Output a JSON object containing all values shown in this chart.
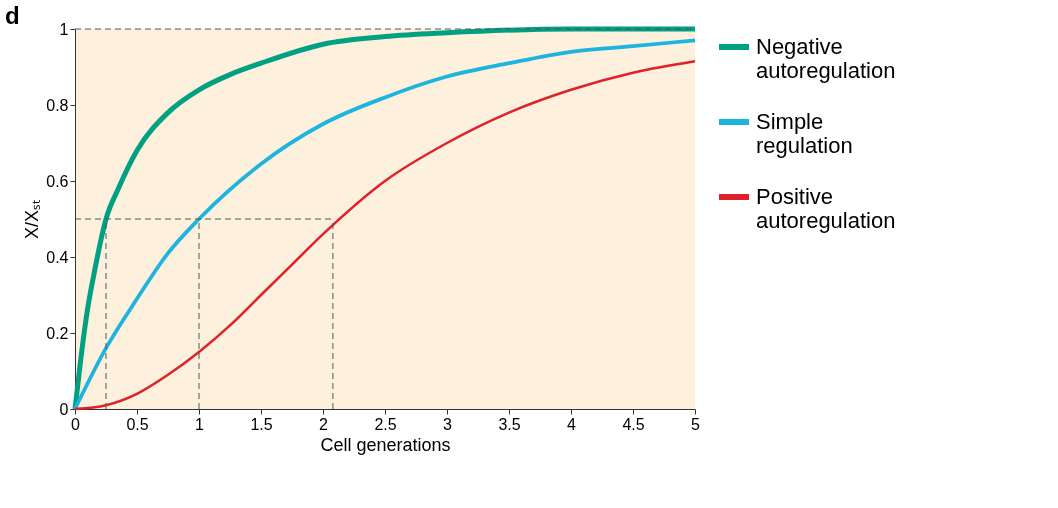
{
  "chart_data": {
    "type": "line",
    "xlabel": "Cell generations",
    "ylabel": "X/Xₛₜ",
    "annotations": [
      "d"
    ],
    "xlim": [
      0,
      5
    ],
    "xticks": [
      0,
      0.5,
      1,
      1.5,
      2,
      2.5,
      3,
      3.5,
      4,
      4.5,
      5
    ],
    "ylim": [
      0,
      1
    ],
    "yticks": [
      0,
      0.2,
      0.4,
      0.6,
      0.8,
      1
    ],
    "legend": "right",
    "grid": false,
    "ref_lines": [
      {
        "axis": "y",
        "value": 1,
        "line_style": "dashed"
      },
      {
        "axis": "y",
        "value": 0.5,
        "line_style": "dashed"
      },
      {
        "axis": "x",
        "value": 0.25,
        "line_style": "dashed"
      },
      {
        "axis": "x",
        "value": 1,
        "line_style": "dashed"
      },
      {
        "axis": "x",
        "value": 2.08,
        "line_style": "dashed"
      }
    ],
    "series": [
      {
        "name": "Negative autoregulation",
        "color": "#00a082",
        "x": [
          0,
          0.05,
          0.1,
          0.15,
          0.25,
          0.35,
          0.5,
          0.75,
          1,
          1.25,
          1.5,
          2,
          2.5,
          3,
          4,
          5
        ],
        "values": [
          0,
          0.14,
          0.26,
          0.35,
          0.5,
          0.58,
          0.68,
          0.78,
          0.84,
          0.88,
          0.91,
          0.96,
          0.98,
          0.99,
          1,
          1
        ]
      },
      {
        "name": "Simple regulation",
        "color": "#1eb4e0",
        "x": [
          0,
          0.25,
          0.5,
          0.75,
          1,
          1.5,
          2,
          2.5,
          3,
          3.5,
          4,
          4.5,
          5
        ],
        "values": [
          0,
          0.16,
          0.29,
          0.41,
          0.5,
          0.645,
          0.75,
          0.82,
          0.875,
          0.91,
          0.94,
          0.955,
          0.97
        ]
      },
      {
        "name": "Positive autoregulation",
        "color": "#e0202a",
        "x": [
          0,
          0.25,
          0.5,
          0.75,
          1,
          1.25,
          1.5,
          1.75,
          2,
          2.5,
          3,
          3.5,
          4,
          4.5,
          5
        ],
        "values": [
          0,
          0.01,
          0.04,
          0.09,
          0.15,
          0.22,
          0.3,
          0.38,
          0.46,
          0.6,
          0.7,
          0.78,
          0.84,
          0.885,
          0.915
        ]
      }
    ]
  }
}
